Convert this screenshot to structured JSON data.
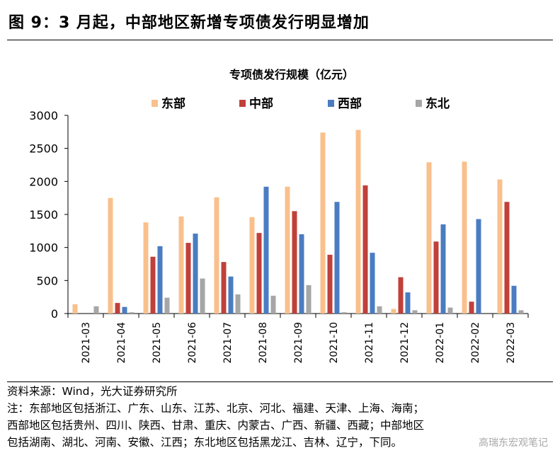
{
  "figure": {
    "title": "图 9：3 月起，中部地区新增专项债发行明显增加"
  },
  "chart_data": {
    "type": "bar",
    "title": "专项债发行规模（亿元）",
    "xlabel": "",
    "ylabel": "",
    "categories": [
      "2021-03",
      "2021-04",
      "2021-05",
      "2021-06",
      "2021-07",
      "2021-08",
      "2021-09",
      "2021-10",
      "2021-11",
      "2021-12",
      "2022-01",
      "2022-02",
      "2022-03"
    ],
    "ylim": [
      0,
      3000
    ],
    "yticks": [
      0,
      500,
      1000,
      1500,
      2000,
      2500,
      3000
    ],
    "grid": false,
    "legend_position": "top",
    "series": [
      {
        "name": "东部",
        "color": "#F9C08C",
        "values": [
          140,
          1750,
          1380,
          1470,
          1760,
          1460,
          1920,
          2740,
          2780,
          70,
          2290,
          2300,
          2030
        ]
      },
      {
        "name": "中部",
        "color": "#C0403A",
        "values": [
          0,
          160,
          860,
          1070,
          780,
          1220,
          1550,
          890,
          1940,
          550,
          1090,
          180,
          1690
        ]
      },
      {
        "name": "西部",
        "color": "#4A7CC2",
        "values": [
          0,
          100,
          1020,
          1210,
          560,
          1920,
          1200,
          1690,
          920,
          320,
          1350,
          1430,
          420
        ]
      },
      {
        "name": "东北",
        "color": "#A6A6A6",
        "values": [
          110,
          20,
          240,
          530,
          290,
          270,
          430,
          20,
          110,
          50,
          90,
          0,
          50
        ]
      }
    ]
  },
  "footer": {
    "source": "资料来源：Wind，光大证券研究所",
    "note_line1": "注：东部地区包括浙江、广东、山东、江苏、北京、河北、福建、天津、上海、海南；",
    "note_line2": "西部地区包括贵州、四川、陕西、甘肃、重庆、内蒙古、广西、新疆、西藏；中部地区",
    "note_line3": "包括湖南、湖北、河南、安徽、江西；东北地区包括黑龙江、吉林、辽宁，下同。"
  },
  "watermark": "高瑞东宏观笔记"
}
